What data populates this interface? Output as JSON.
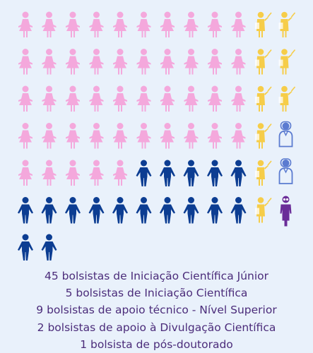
{
  "chart_data": {
    "type": "pictograph",
    "columns": 12,
    "series": [
      {
        "name": "45 bolsistas de Iniciação Científica Júnior",
        "value": 45,
        "color": "#f4a8dc",
        "icon": "girl-student-icon"
      },
      {
        "name": "5 bolsistas de Iniciação Científica",
        "value": 5,
        "color": "#f6cd49",
        "icon": "teacher-pointer-icon"
      },
      {
        "name": "9 bolsistas de apoio técnico - Nível Superior",
        "value": 9,
        "color": "#0c3d92",
        "icon": "boy-student-icon"
      },
      {
        "name": "2 bolsistas de apoio à Divulgação Científica",
        "value": 2,
        "color": "#5b7bd0",
        "icon": "scientist-icon"
      },
      {
        "name": "1 bolsista de pós-doutorado",
        "value": 1,
        "color": "#6a2c98",
        "icon": "postdoc-icon"
      }
    ]
  },
  "legend": [
    "45 bolsistas de Iniciação Científica Júnior",
    "5 bolsistas de Iniciação Científica",
    "9 bolsistas de apoio técnico - Nível Superior",
    "2 bolsistas de apoio à Divulgação Científica",
    "1 bolsista de pós-doutorado"
  ]
}
